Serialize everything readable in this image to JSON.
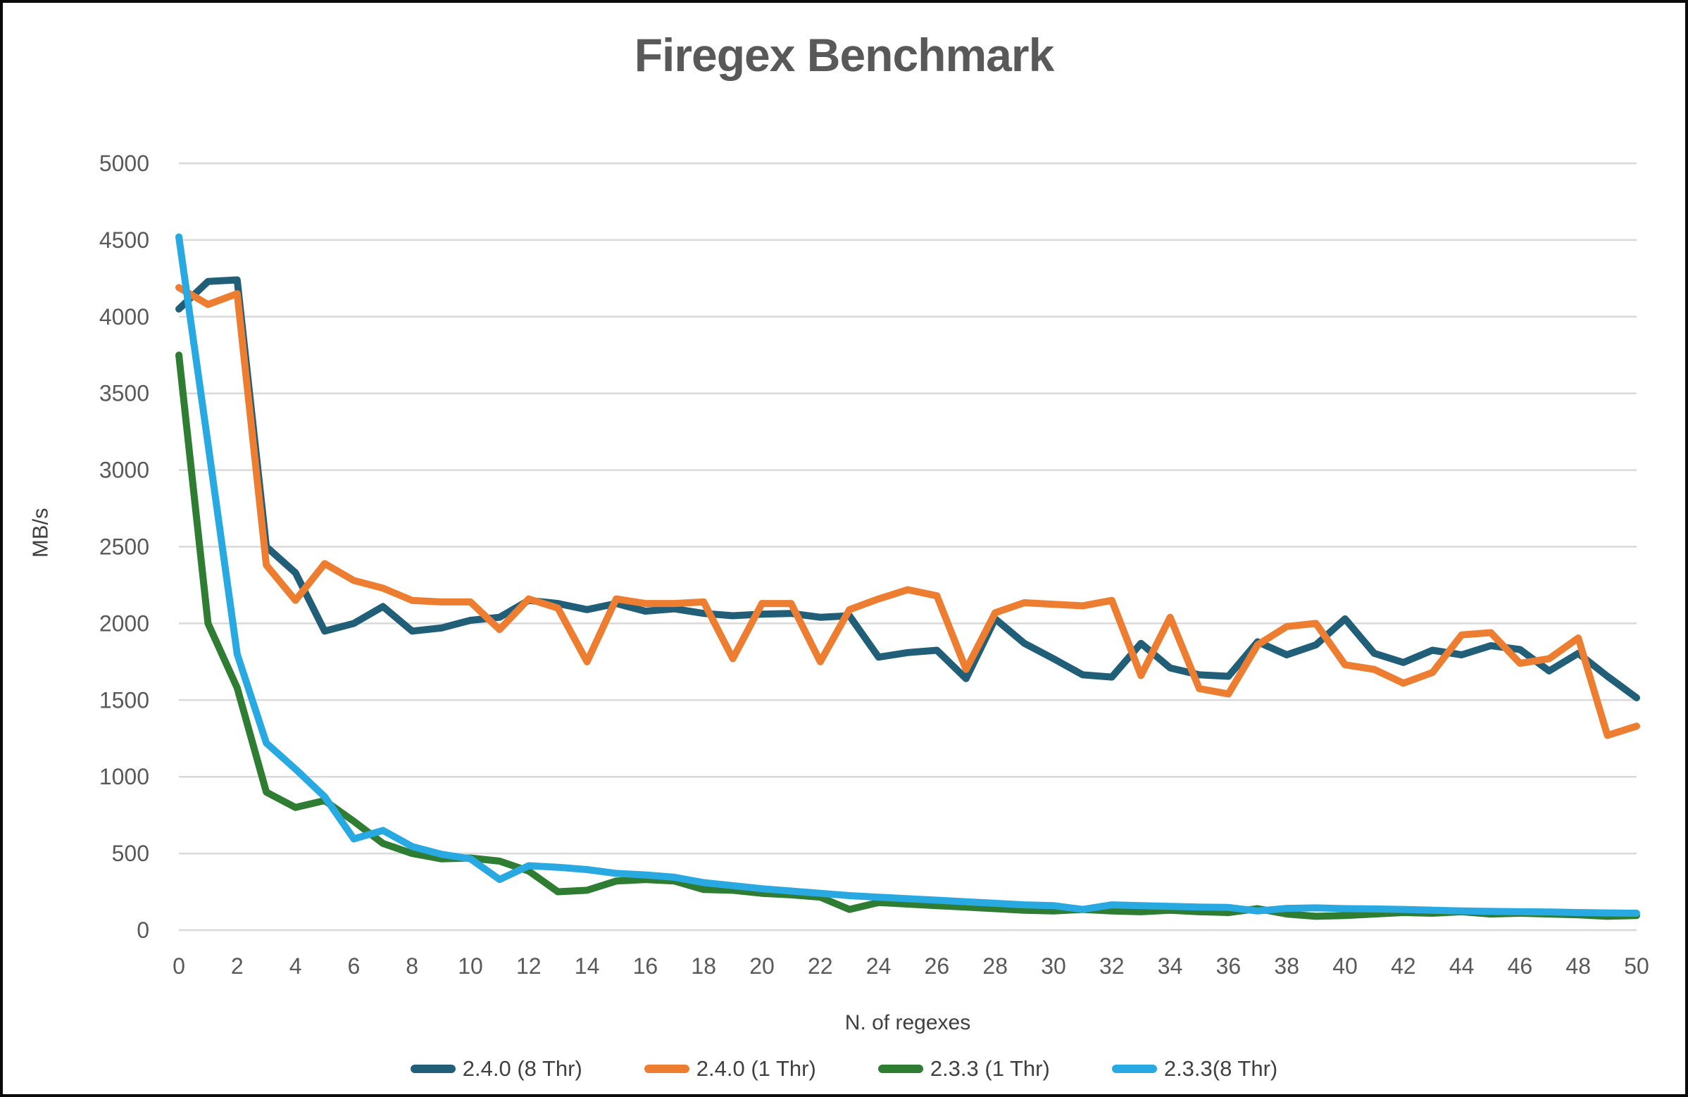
{
  "title": "Firegex Benchmark",
  "y_axis": {
    "label": "MB/s",
    "min": 0,
    "max": 5000,
    "tick_step": 500
  },
  "x_axis": {
    "label": "N. of regexes",
    "min": 0,
    "max": 50,
    "tick_step": 2
  },
  "colors": {
    "background": "#ffffff",
    "frame": "#0a0a0a",
    "grid": "#d9d9d9",
    "tick_label": "#595959",
    "title": "#595959"
  },
  "legend": {
    "position": "bottom"
  },
  "chart_data": {
    "type": "line",
    "title": "Firegex Benchmark",
    "xlabel": "N. of regexes",
    "ylabel": "MB/s",
    "xlim": [
      0,
      50
    ],
    "ylim": [
      0,
      5000
    ],
    "grid": "horizontal",
    "x": [
      0,
      1,
      2,
      3,
      4,
      5,
      6,
      7,
      8,
      9,
      10,
      11,
      12,
      13,
      14,
      15,
      16,
      17,
      18,
      19,
      20,
      21,
      22,
      23,
      24,
      25,
      26,
      27,
      28,
      29,
      30,
      31,
      32,
      33,
      34,
      35,
      36,
      37,
      38,
      39,
      40,
      41,
      42,
      43,
      44,
      45,
      46,
      47,
      48,
      49,
      50
    ],
    "series": [
      {
        "name": "2.4.0 (8 Thr)",
        "color": "#215e78",
        "values": [
          4050,
          4230,
          4240,
          2500,
          2330,
          1950,
          2000,
          2110,
          1950,
          1970,
          2020,
          2040,
          2150,
          2130,
          2090,
          2130,
          2080,
          2095,
          2065,
          2050,
          2060,
          2065,
          2040,
          2050,
          1780,
          1810,
          1825,
          1640,
          2030,
          1870,
          1770,
          1665,
          1650,
          1870,
          1710,
          1665,
          1655,
          1880,
          1795,
          1860,
          2030,
          1805,
          1745,
          1825,
          1795,
          1855,
          1830,
          1690,
          1805,
          1655,
          1515
        ]
      },
      {
        "name": "2.4.0 (1 Thr)",
        "color": "#ed7d31",
        "values": [
          4190,
          4080,
          4150,
          2380,
          2150,
          2390,
          2280,
          2230,
          2150,
          2140,
          2140,
          1960,
          2160,
          2100,
          1750,
          2160,
          2130,
          2130,
          2140,
          1770,
          2130,
          2130,
          1750,
          2090,
          2160,
          2220,
          2180,
          1700,
          2070,
          2135,
          2125,
          2115,
          2150,
          1660,
          2040,
          1575,
          1540,
          1860,
          1980,
          2000,
          1730,
          1700,
          1610,
          1680,
          1925,
          1940,
          1740,
          1770,
          1905,
          1270,
          1330
        ]
      },
      {
        "name": "2.3.3 (1 Thr)",
        "color": "#2e7d32",
        "values": [
          3750,
          2000,
          1580,
          900,
          800,
          845,
          710,
          565,
          500,
          465,
          470,
          450,
          385,
          250,
          260,
          320,
          330,
          320,
          265,
          260,
          240,
          230,
          215,
          135,
          180,
          170,
          160,
          150,
          140,
          130,
          125,
          135,
          125,
          120,
          130,
          120,
          115,
          140,
          105,
          90,
          95,
          105,
          115,
          110,
          120,
          105,
          110,
          105,
          100,
          90,
          95
        ]
      },
      {
        "name": "2.3.3(8 Thr)",
        "color": "#29a9e1",
        "values": [
          4520,
          3170,
          1800,
          1220,
          1050,
          870,
          595,
          650,
          545,
          495,
          465,
          330,
          420,
          410,
          395,
          370,
          360,
          345,
          310,
          290,
          270,
          255,
          240,
          225,
          215,
          205,
          195,
          185,
          175,
          165,
          160,
          135,
          165,
          160,
          155,
          150,
          148,
          125,
          142,
          145,
          140,
          138,
          135,
          130,
          125,
          122,
          120,
          118,
          115,
          112,
          110
        ]
      }
    ]
  }
}
